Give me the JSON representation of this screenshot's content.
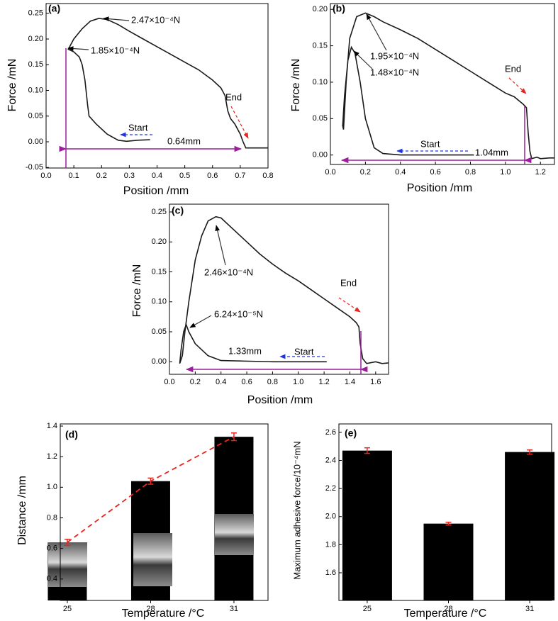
{
  "chart_data": [
    {
      "type": "line",
      "label": "(a)",
      "xlabel": "Position /mm",
      "ylabel": "Force /mN",
      "xlim": [
        0,
        0.8
      ],
      "ylim": [
        -0.051,
        0.269
      ],
      "xticks": [
        {
          "value": 0,
          "label": "0.0"
        },
        0.1,
        0.2,
        0.3,
        0.4,
        0.5,
        0.6,
        0.7,
        0.8
      ],
      "yticks": [
        -0.05,
        {
          "value": 0,
          "label": "0.00"
        },
        0.05,
        {
          "value": 0.1,
          "label": "0.10"
        },
        0.15,
        {
          "value": 0.2,
          "label": "0.20"
        },
        0.25
      ],
      "color": "#1a1a1a",
      "x": [
        0.375,
        0.33,
        0.29,
        0.26,
        0.22,
        0.18,
        0.155,
        0.15,
        0.14,
        0.13,
        0.12,
        0.1,
        0.08,
        0.1,
        0.13,
        0.16,
        0.19,
        0.22,
        0.26,
        0.3,
        0.35,
        0.4,
        0.45,
        0.5,
        0.55,
        0.6,
        0.63,
        0.645,
        0.655,
        0.665,
        0.68,
        0.7,
        0.71,
        0.72,
        0.75,
        0.8
      ],
      "values": [
        0.004,
        0.003,
        0.001,
        0.003,
        0.015,
        0.035,
        0.05,
        0.07,
        0.12,
        0.15,
        0.165,
        0.175,
        0.18,
        0.2,
        0.22,
        0.235,
        0.24,
        0.238,
        0.228,
        0.215,
        0.2,
        0.185,
        0.17,
        0.155,
        0.14,
        0.12,
        0.105,
        0.09,
        0.06,
        0.045,
        0.035,
        0.015,
        0.0,
        -0.012,
        -0.012,
        -0.012
      ],
      "annotations": [
        {
          "text": "2.47×10⁻⁴N",
          "color": "#000000"
        },
        {
          "text": "1.85×10⁻⁴N",
          "color": "#000000"
        },
        {
          "text": "End",
          "color": "#e8251f"
        },
        {
          "text": "Start",
          "color": "#1f33e0"
        },
        {
          "text": "0.64mm",
          "color": "#9b1f9b"
        }
      ]
    },
    {
      "type": "line",
      "label": "(b)",
      "xlabel": "Position /mm",
      "ylabel": "Force /mN",
      "xlim": [
        0,
        1.28
      ],
      "ylim": [
        -0.013,
        0.208
      ],
      "xticks": [
        {
          "value": 0,
          "label": "0.0"
        },
        0.2,
        0.4,
        0.6,
        0.8,
        {
          "value": 1,
          "label": "1.0"
        },
        1.2
      ],
      "yticks": [
        {
          "value": 0,
          "label": "0.00"
        },
        0.05,
        {
          "value": 0.1,
          "label": "0.10"
        },
        0.15,
        {
          "value": 0.2,
          "label": "0.20"
        }
      ],
      "color": "#1a1a1a",
      "x": [
        0.82,
        0.6,
        0.4,
        0.3,
        0.25,
        0.2,
        0.17,
        0.14,
        0.12,
        0.1,
        0.08,
        0.07,
        0.075,
        0.09,
        0.11,
        0.15,
        0.2,
        0.25,
        0.3,
        0.4,
        0.5,
        0.6,
        0.7,
        0.8,
        0.9,
        1.0,
        1.05,
        1.1,
        1.12,
        1.13,
        1.14,
        1.15,
        1.18,
        1.2,
        1.25,
        1.28
      ],
      "values": [
        0.0,
        0.0,
        0.0,
        0.002,
        0.01,
        0.05,
        0.1,
        0.14,
        0.148,
        0.13,
        0.08,
        0.04,
        0.035,
        0.1,
        0.16,
        0.19,
        0.195,
        0.19,
        0.183,
        0.172,
        0.16,
        0.145,
        0.13,
        0.115,
        0.1,
        0.085,
        0.08,
        0.07,
        0.065,
        0.03,
        0.005,
        -0.005,
        -0.003,
        -0.005,
        -0.004,
        -0.004
      ],
      "annotations": [
        {
          "text": "1.95×10⁻⁴N",
          "color": "#000000"
        },
        {
          "text": "1.48×10⁻⁴N",
          "color": "#000000"
        },
        {
          "text": "End",
          "color": "#e8251f"
        },
        {
          "text": "Start",
          "color": "#1f33e0"
        },
        {
          "text": "1.04mm",
          "color": "#000000"
        }
      ]
    },
    {
      "type": "line",
      "label": "(c)",
      "xlabel": "Position /mm",
      "ylabel": "Force /mN",
      "xlim": [
        0,
        1.7
      ],
      "ylim": [
        -0.021,
        0.263
      ],
      "xticks": [
        {
          "value": 0,
          "label": "0.0"
        },
        0.2,
        0.4,
        0.6,
        0.8,
        {
          "value": 1,
          "label": "1.0"
        },
        1.2,
        1.4,
        1.6
      ],
      "yticks": [
        {
          "value": 0,
          "label": "0.00"
        },
        0.05,
        {
          "value": 0.1,
          "label": "0.10"
        },
        0.15,
        {
          "value": 0.2,
          "label": "0.20"
        },
        0.25
      ],
      "color": "#1a1a1a",
      "x": [
        1.22,
        0.8,
        0.4,
        0.3,
        0.2,
        0.15,
        0.13,
        0.11,
        0.09,
        0.08,
        0.1,
        0.12,
        0.15,
        0.2,
        0.25,
        0.3,
        0.36,
        0.4,
        0.5,
        0.6,
        0.7,
        0.8,
        0.9,
        1.0,
        1.1,
        1.2,
        1.3,
        1.4,
        1.45,
        1.47,
        1.48,
        1.5,
        1.53,
        1.6,
        1.65,
        1.7
      ],
      "values": [
        0.0,
        0.0,
        0.002,
        0.01,
        0.03,
        0.05,
        0.062,
        0.05,
        0.02,
        -0.003,
        0.01,
        0.05,
        0.1,
        0.17,
        0.21,
        0.235,
        0.242,
        0.24,
        0.22,
        0.2,
        0.18,
        0.163,
        0.148,
        0.135,
        0.12,
        0.105,
        0.09,
        0.075,
        0.065,
        0.058,
        0.03,
        0.005,
        -0.003,
        0.0,
        -0.003,
        -0.002
      ],
      "annotations": [
        {
          "text": "2.46×10⁻⁴N",
          "color": "#000000"
        },
        {
          "text": "6.24×10⁻⁵N",
          "color": "#000000"
        },
        {
          "text": "End",
          "color": "#e8251f"
        },
        {
          "text": "Start",
          "color": "#1f33e0"
        },
        {
          "text": "1.33mm",
          "color": "#000000"
        }
      ]
    },
    {
      "type": "bar",
      "label": "(d)",
      "xlabel": "Temperature /°C",
      "ylabel": "Distance /mm",
      "ylim": [
        0.26,
        1.414
      ],
      "yticks": [
        0.4,
        0.6,
        0.8,
        {
          "value": 1,
          "label": "1.0"
        },
        1.2,
        1.4
      ],
      "categories": [
        "25",
        "28",
        "31"
      ],
      "values": [
        0.64,
        1.04,
        1.33
      ],
      "errors": [
        0.02,
        0.02,
        0.025
      ],
      "color": "#000000",
      "error_color": "#e8251f",
      "trend_line": true,
      "trend_color": "#e8251f"
    },
    {
      "type": "bar",
      "label": "(e)",
      "xlabel": "Temperature /°C",
      "ylabel": "Maximum adhesive force/10⁻⁴mN",
      "ylim": [
        1.403,
        2.66
      ],
      "yticks": [
        1.6,
        1.8,
        {
          "value": 2,
          "label": "2.0"
        },
        2.2,
        2.4,
        2.6
      ],
      "categories": [
        "25",
        "28",
        "31"
      ],
      "values": [
        2.47,
        1.95,
        2.46
      ],
      "errors": [
        0.02,
        0.01,
        0.015
      ],
      "color": "#000000",
      "error_color": "#e8251f",
      "trend_line": false
    }
  ]
}
